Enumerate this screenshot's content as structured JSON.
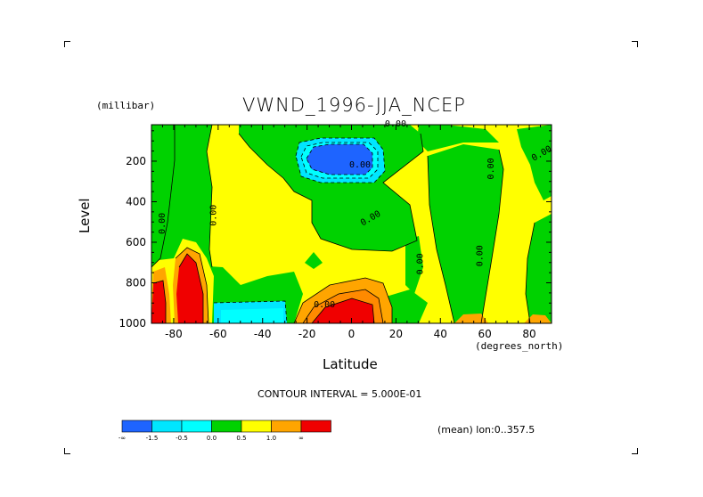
{
  "chart_data": {
    "type": "heatmap",
    "title": "VWND_1996-JJA_NCEP",
    "xlabel": "Latitude",
    "ylabel": "Level",
    "x_unit": "(degrees_north)",
    "y_unit": "(millibar)",
    "xlim": [
      -90,
      90
    ],
    "ylim": [
      1000,
      20
    ],
    "y_inverted": true,
    "xticks": [
      "-80",
      "-60",
      "-40",
      "-20",
      "0",
      "20",
      "40",
      "60",
      "80"
    ],
    "yticks": [
      "200",
      "400",
      "600",
      "800",
      "1000"
    ],
    "contour_interval": "CONTOUR INTERVAL = 5.000E-01",
    "averaging_note": "(mean) lon:0..357.5",
    "contour_labels": [
      "0.00",
      "0.00",
      "0.00",
      "0.00",
      "0.00",
      "0.00",
      "0.00",
      "0.00",
      "0.00",
      "0.00"
    ],
    "colorbar": {
      "labels": [
        "-∞",
        "-1.5",
        "-0.5",
        "0.0",
        "0.5",
        "1.0",
        "∞"
      ],
      "bins": [
        {
          "range": "< -1.5",
          "color": "#1e64ff"
        },
        {
          "range": "-1.5 to -1.0",
          "color": "#00e6ff"
        },
        {
          "range": "-1.0 to -0.5",
          "color": "#00ffff"
        },
        {
          "range": "-0.5 to 0.0",
          "color": "#00d200"
        },
        {
          "range": "0.0 to 0.5",
          "color": "#ffff00"
        },
        {
          "range": "0.5 to 1.0",
          "color": "#ffa500"
        },
        {
          "range": "> 1.0",
          "color": "#f00000"
        }
      ]
    },
    "features": [
      {
        "name": "negative core",
        "lat": [
          -10,
          8
        ],
        "level": [
          120,
          280
        ],
        "min": -2.0
      },
      {
        "name": "positive core SH",
        "lat": [
          -82,
          -70
        ],
        "level": [
          700,
          1000
        ],
        "max": 2.5
      },
      {
        "name": "positive core edge",
        "lat": [
          -90,
          -85
        ],
        "level": [
          780,
          1000
        ],
        "max": 1.5
      },
      {
        "name": "positive core tropics",
        "lat": [
          -18,
          10
        ],
        "level": [
          800,
          1000
        ],
        "max": 2.0
      },
      {
        "name": "negative band",
        "lat": [
          -62,
          -32
        ],
        "level": [
          880,
          1000
        ],
        "min": -1.0
      }
    ]
  }
}
